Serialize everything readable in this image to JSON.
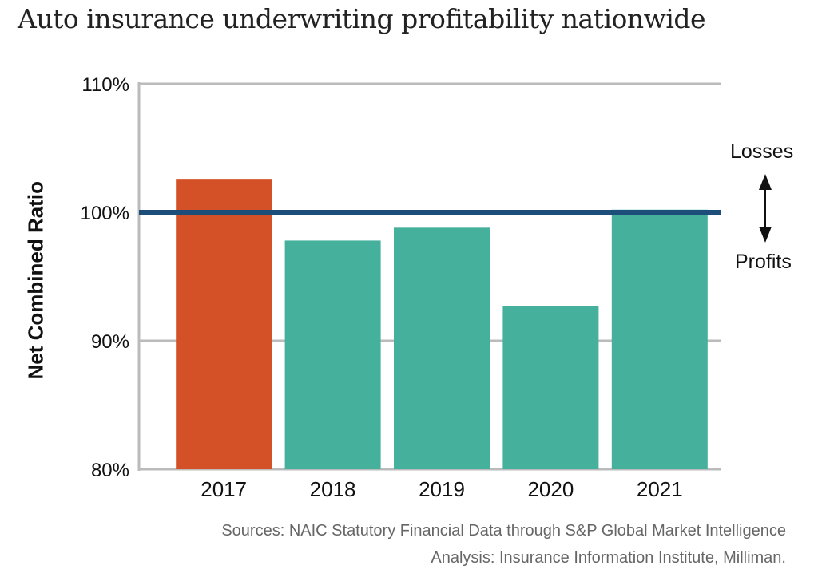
{
  "chart_data": {
    "type": "bar",
    "title": "Auto insurance underwriting profitability nationwide",
    "xlabel": "",
    "ylabel": "Net Combined Ratio",
    "categories": [
      "2017",
      "2018",
      "2019",
      "2020",
      "2021"
    ],
    "values": [
      102.6,
      97.8,
      98.8,
      92.7,
      100.2
    ],
    "unit": "%",
    "ylim": [
      80,
      110
    ],
    "yticks": [
      80,
      90,
      100,
      110
    ],
    "ytick_labels": [
      "80%",
      "90%",
      "100%",
      "110%"
    ],
    "grid": true,
    "reference_line": {
      "value": 100,
      "color": "#1d4e79"
    },
    "bar_colors": [
      "#d45127",
      "#45b09c",
      "#45b09c",
      "#45b09c",
      "#45b09c"
    ],
    "annotations": {
      "above": "Losses",
      "below": "Profits"
    },
    "sources": [
      "Sources: NAIC Statutory Financial Data through S&P Global Market Intelligence",
      "Analysis: Insurance Information Institute, Milliman."
    ]
  }
}
